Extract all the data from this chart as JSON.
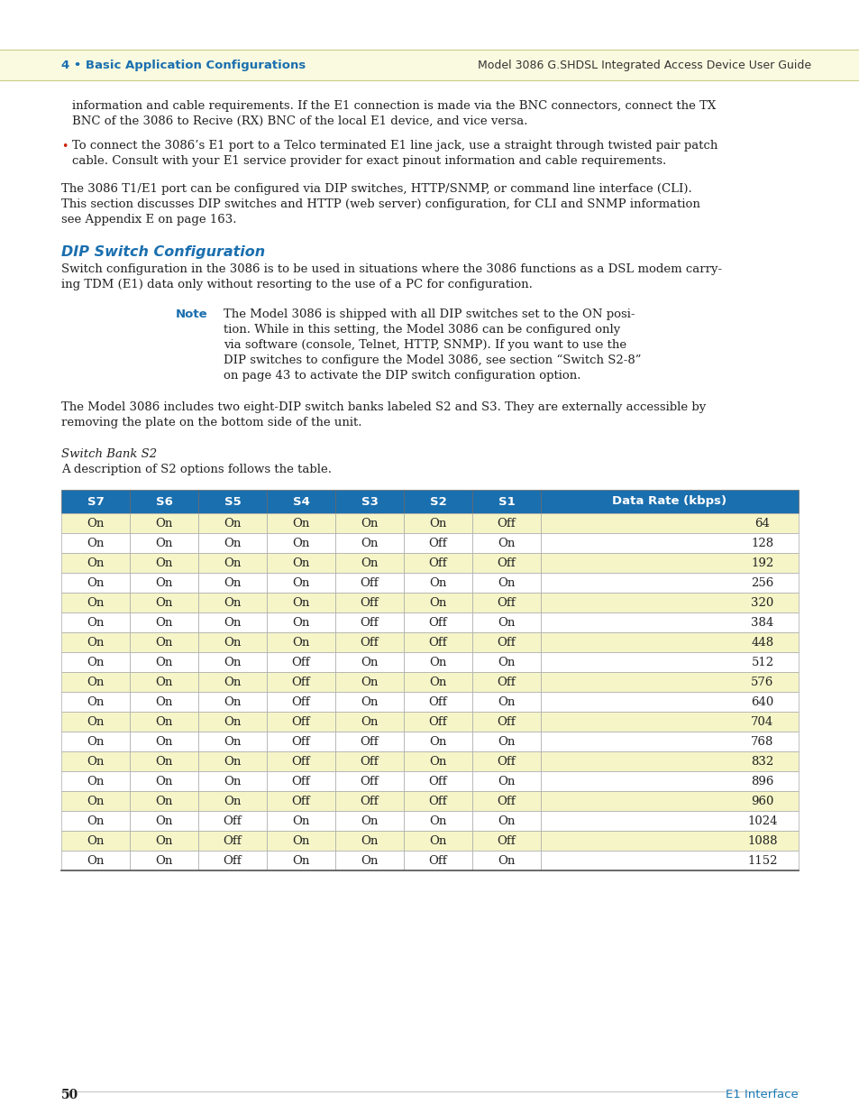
{
  "page_bg": "#ffffff",
  "header_bg": "#fafae0",
  "header_left_text": "4 • Basic Application Configurations",
  "header_left_color": "#1a6faf",
  "header_right_text": "Model 3086 G.SHDSL Integrated Access Device User Guide",
  "header_right_color": "#333333",
  "body_text_color": "#222222",
  "para1_line1": "information and cable requirements. If the E1 connection is made via the BNC connectors, connect the TX",
  "para1_line2": "BNC of the 3086 to Recive (RX) BNC of the local E1 device, and vice versa.",
  "bullet1_line1": "To connect the 3086’s E1 port to a Telco terminated E1 line jack, use a straight through twisted pair patch",
  "bullet1_line2": "cable. Consult with your E1 service provider for exact pinout information and cable requirements.",
  "bullet_color": "#cc2200",
  "para2_line1": "The 3086 T1/E1 port can be configured via DIP switches, HTTP/SNMP, or command line interface (CLI).",
  "para2_line2": "This section discusses DIP switches and HTTP (web server) configuration, for CLI and SNMP information",
  "para2_line3": "see Appendix E on page 163.",
  "section_title": "DIP Switch Configuration",
  "section_title_color": "#1a6faf",
  "section_body_line1": "Switch configuration in the 3086 is to be used in situations where the 3086 functions as a DSL modem carry-",
  "section_body_line2": "ing TDM (E1) data only without resorting to the use of a PC for configuration.",
  "note_label": "Note",
  "note_label_color": "#1a6faf",
  "note_lines": [
    "The Model 3086 is shipped with all DIP switches set to the ON posi-",
    "tion. While in this setting, the Model 3086 can be configured only",
    "via software (console, Telnet, HTTP, SNMP). If you want to use the",
    "DIP switches to configure the Model 3086, see section “Switch S2-8”",
    "on page 43 to activate the DIP switch configuration option."
  ],
  "para3_line1": "The Model 3086 includes two eight-DIP switch banks labeled S2 and S3. They are externally accessible by",
  "para3_line2": "removing the plate on the bottom side of the unit.",
  "switch_bank_title": "Switch Bank S2",
  "switch_bank_desc": "A description of S2 options follows the table.",
  "table_header": [
    "S7",
    "S6",
    "S5",
    "S4",
    "S3",
    "S2",
    "S1",
    "Data Rate (kbps)"
  ],
  "table_header_bg": "#1a6faf",
  "table_header_color": "#ffffff",
  "table_rows": [
    [
      "On",
      "On",
      "On",
      "On",
      "On",
      "On",
      "Off",
      "64"
    ],
    [
      "On",
      "On",
      "On",
      "On",
      "On",
      "Off",
      "On",
      "128"
    ],
    [
      "On",
      "On",
      "On",
      "On",
      "On",
      "Off",
      "Off",
      "192"
    ],
    [
      "On",
      "On",
      "On",
      "On",
      "Off",
      "On",
      "On",
      "256"
    ],
    [
      "On",
      "On",
      "On",
      "On",
      "Off",
      "On",
      "Off",
      "320"
    ],
    [
      "On",
      "On",
      "On",
      "On",
      "Off",
      "Off",
      "On",
      "384"
    ],
    [
      "On",
      "On",
      "On",
      "On",
      "Off",
      "Off",
      "Off",
      "448"
    ],
    [
      "On",
      "On",
      "On",
      "Off",
      "On",
      "On",
      "On",
      "512"
    ],
    [
      "On",
      "On",
      "On",
      "Off",
      "On",
      "On",
      "Off",
      "576"
    ],
    [
      "On",
      "On",
      "On",
      "Off",
      "On",
      "Off",
      "On",
      "640"
    ],
    [
      "On",
      "On",
      "On",
      "Off",
      "On",
      "Off",
      "Off",
      "704"
    ],
    [
      "On",
      "On",
      "On",
      "Off",
      "Off",
      "On",
      "On",
      "768"
    ],
    [
      "On",
      "On",
      "On",
      "Off",
      "Off",
      "On",
      "Off",
      "832"
    ],
    [
      "On",
      "On",
      "On",
      "Off",
      "Off",
      "Off",
      "On",
      "896"
    ],
    [
      "On",
      "On",
      "On",
      "Off",
      "Off",
      "Off",
      "Off",
      "960"
    ],
    [
      "On",
      "On",
      "Off",
      "On",
      "On",
      "On",
      "On",
      "1024"
    ],
    [
      "On",
      "On",
      "Off",
      "On",
      "On",
      "On",
      "Off",
      "1088"
    ],
    [
      "On",
      "On",
      "Off",
      "On",
      "On",
      "Off",
      "On",
      "1152"
    ]
  ],
  "table_stripe_bg": "#f5f5c8",
  "table_odd_bg": "#ffffff",
  "footer_page": "50",
  "footer_right": "E1 Interface",
  "footer_right_color": "#1a7ab5"
}
